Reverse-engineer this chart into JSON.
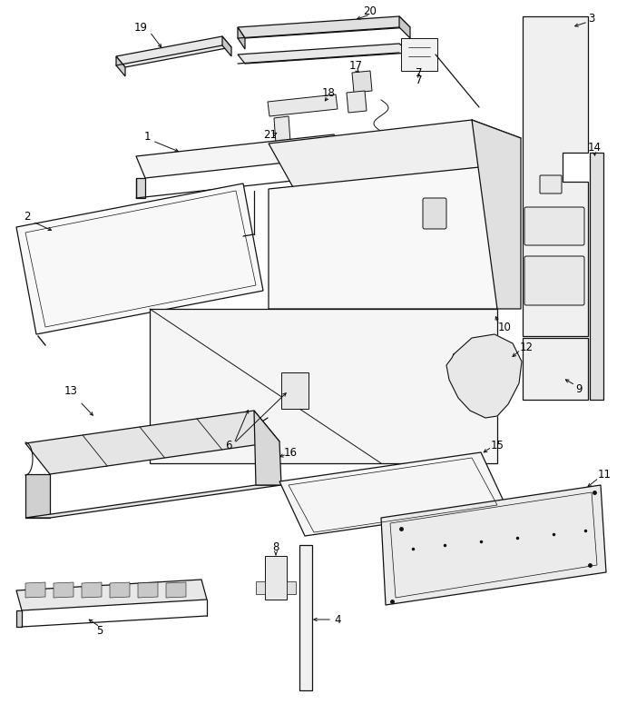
{
  "bg_color": "#ffffff",
  "line_color": "#111111",
  "fig_width": 6.8,
  "fig_height": 7.75,
  "dpi": 100
}
